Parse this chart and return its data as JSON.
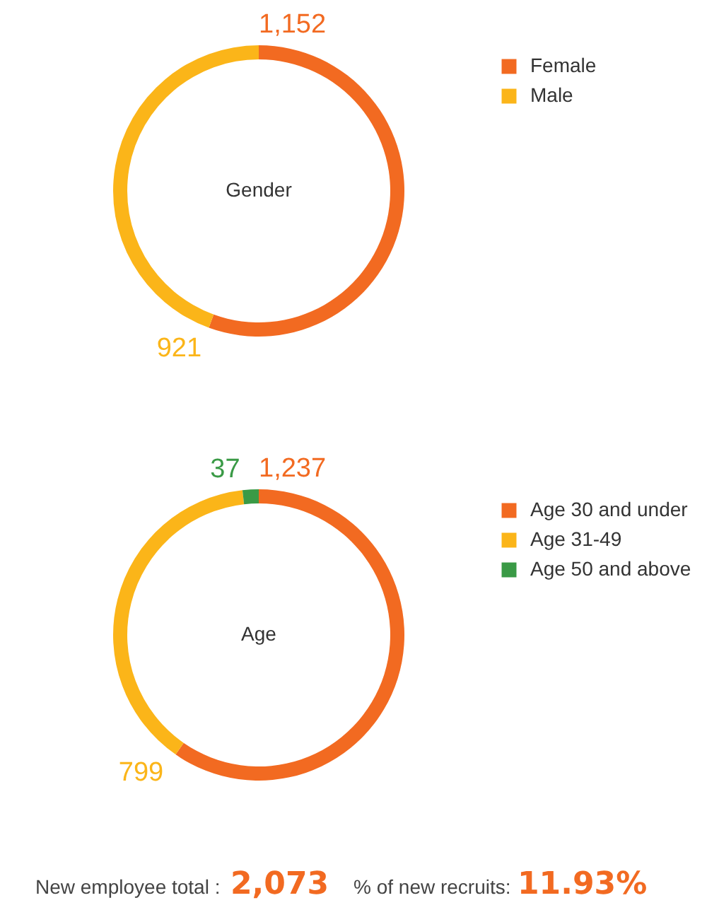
{
  "chart_data": [
    {
      "type": "donut",
      "title": "Gender",
      "categories": [
        "Female",
        "Male"
      ],
      "values": [
        1152,
        921
      ],
      "colors": [
        "#f26a21",
        "#fbb519"
      ],
      "value_labels": [
        "1,152",
        "921"
      ],
      "legend": "right"
    },
    {
      "type": "donut",
      "title": "Age",
      "categories": [
        "Age 30 and under",
        "Age 31-49",
        "Age 50 and above"
      ],
      "values": [
        1237,
        799,
        37
      ],
      "colors": [
        "#f26a21",
        "#fbb519",
        "#3a9a46"
      ],
      "value_labels": [
        "1,237",
        "799",
        "37"
      ],
      "legend": "right"
    },
    {
      "type": "other",
      "annotations": [
        "New employee total :",
        "2,073",
        "% of new recruits:",
        "11.93%"
      ]
    }
  ]
}
